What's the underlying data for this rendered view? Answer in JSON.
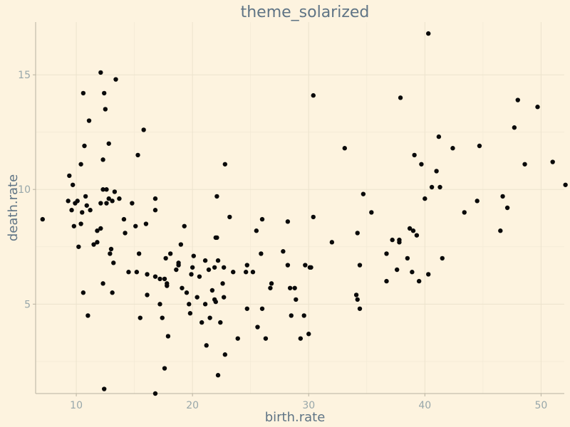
{
  "chart_data": {
    "type": "scatter",
    "title": "theme_solarized",
    "xlabel": "birth.rate",
    "ylabel": "death.rate",
    "xlim": [
      6.5,
      52
    ],
    "ylim": [
      1.1,
      17.3
    ],
    "xticks": [
      10,
      20,
      30,
      40,
      50
    ],
    "yticks": [
      5,
      10,
      15
    ],
    "grid": true,
    "legend": "none",
    "colors": {
      "background": "#fdf3df",
      "points": "#0a0a0a",
      "text": "#5f7485",
      "tick_text": "#98a7aa"
    },
    "points": [
      [
        7.1,
        8.7
      ],
      [
        9.3,
        9.5
      ],
      [
        9.4,
        10.6
      ],
      [
        9.6,
        9.1
      ],
      [
        9.7,
        10.2
      ],
      [
        9.8,
        8.4
      ],
      [
        9.9,
        9.4
      ],
      [
        10.1,
        9.5
      ],
      [
        10.2,
        7.5
      ],
      [
        10.4,
        8.5
      ],
      [
        10.5,
        9.0
      ],
      [
        10.4,
        11.1
      ],
      [
        10.6,
        14.2
      ],
      [
        10.6,
        5.5
      ],
      [
        10.7,
        11.9
      ],
      [
        10.8,
        9.7
      ],
      [
        10.9,
        9.3
      ],
      [
        11.1,
        13.0
      ],
      [
        11.0,
        4.5
      ],
      [
        11.2,
        9.1
      ],
      [
        11.5,
        7.6
      ],
      [
        11.8,
        7.7
      ],
      [
        11.8,
        8.2
      ],
      [
        12.1,
        9.4
      ],
      [
        12.1,
        8.3
      ],
      [
        12.1,
        15.1
      ],
      [
        12.3,
        10.0
      ],
      [
        12.3,
        11.3
      ],
      [
        12.3,
        5.9
      ],
      [
        12.4,
        14.2
      ],
      [
        12.5,
        13.5
      ],
      [
        12.6,
        10.0
      ],
      [
        12.6,
        9.4
      ],
      [
        12.8,
        12.0
      ],
      [
        12.8,
        9.6
      ],
      [
        12.9,
        7.2
      ],
      [
        13.0,
        7.4
      ],
      [
        13.1,
        9.5
      ],
      [
        13.1,
        5.5
      ],
      [
        13.2,
        6.8
      ],
      [
        13.3,
        9.9
      ],
      [
        13.4,
        14.8
      ],
      [
        13.7,
        9.6
      ],
      [
        12.4,
        1.3
      ],
      [
        14.1,
        8.7
      ],
      [
        14.2,
        8.1
      ],
      [
        14.5,
        6.4
      ],
      [
        14.8,
        9.4
      ],
      [
        15.1,
        8.4
      ],
      [
        15.2,
        6.4
      ],
      [
        15.3,
        11.5
      ],
      [
        15.4,
        7.2
      ],
      [
        15.5,
        4.4
      ],
      [
        15.8,
        12.6
      ],
      [
        16.0,
        8.5
      ],
      [
        16.1,
        6.3
      ],
      [
        16.1,
        5.4
      ],
      [
        16.8,
        6.2
      ],
      [
        16.8,
        9.6
      ],
      [
        16.8,
        9.1
      ],
      [
        16.8,
        1.1
      ],
      [
        17.2,
        6.1
      ],
      [
        17.2,
        5.0
      ],
      [
        17.4,
        4.4
      ],
      [
        17.6,
        6.1
      ],
      [
        17.6,
        2.2
      ],
      [
        17.7,
        7.0
      ],
      [
        17.8,
        5.9
      ],
      [
        17.8,
        5.8
      ],
      [
        17.9,
        3.6
      ],
      [
        18.1,
        7.2
      ],
      [
        18.6,
        6.5
      ],
      [
        18.8,
        6.8
      ],
      [
        18.8,
        6.7
      ],
      [
        19.0,
        7.6
      ],
      [
        19.1,
        5.7
      ],
      [
        19.3,
        8.4
      ],
      [
        19.5,
        5.5
      ],
      [
        19.7,
        5.0
      ],
      [
        19.8,
        4.6
      ],
      [
        19.9,
        6.3
      ],
      [
        20.0,
        6.6
      ],
      [
        20.1,
        7.1
      ],
      [
        20.4,
        5.3
      ],
      [
        20.6,
        6.2
      ],
      [
        20.8,
        4.2
      ],
      [
        21.1,
        6.9
      ],
      [
        21.2,
        3.2
      ],
      [
        21.1,
        5.0
      ],
      [
        21.4,
        6.5
      ],
      [
        21.5,
        4.4
      ],
      [
        21.7,
        5.6
      ],
      [
        21.9,
        5.2
      ],
      [
        21.9,
        6.6
      ],
      [
        22.0,
        7.9
      ],
      [
        22.0,
        5.1
      ],
      [
        22.1,
        7.9
      ],
      [
        22.1,
        9.7
      ],
      [
        22.2,
        6.9
      ],
      [
        22.2,
        1.9
      ],
      [
        22.4,
        4.2
      ],
      [
        22.6,
        5.9
      ],
      [
        22.7,
        6.6
      ],
      [
        22.7,
        5.3
      ],
      [
        22.8,
        2.8
      ],
      [
        22.8,
        11.1
      ],
      [
        23.2,
        8.8
      ],
      [
        23.5,
        6.4
      ],
      [
        23.9,
        3.5
      ],
      [
        24.6,
        6.4
      ],
      [
        24.7,
        4.8
      ],
      [
        24.7,
        6.7
      ],
      [
        25.2,
        6.4
      ],
      [
        25.5,
        8.2
      ],
      [
        25.6,
        4.0
      ],
      [
        25.9,
        7.2
      ],
      [
        26.0,
        4.8
      ],
      [
        26.0,
        8.7
      ],
      [
        26.3,
        3.5
      ],
      [
        26.7,
        5.7
      ],
      [
        26.8,
        5.9
      ],
      [
        27.8,
        7.3
      ],
      [
        28.2,
        6.7
      ],
      [
        28.2,
        8.6
      ],
      [
        28.4,
        5.7
      ],
      [
        28.5,
        4.5
      ],
      [
        28.8,
        5.7
      ],
      [
        28.9,
        5.2
      ],
      [
        29.3,
        3.5
      ],
      [
        29.6,
        4.5
      ],
      [
        29.7,
        6.7
      ],
      [
        30.0,
        3.7
      ],
      [
        30.1,
        6.6
      ],
      [
        30.2,
        6.6
      ],
      [
        30.4,
        8.8
      ],
      [
        30.4,
        14.1
      ],
      [
        32.0,
        7.7
      ],
      [
        33.1,
        11.8
      ],
      [
        34.1,
        5.4
      ],
      [
        34.2,
        5.2
      ],
      [
        34.2,
        8.1
      ],
      [
        34.4,
        6.7
      ],
      [
        34.4,
        4.8
      ],
      [
        34.7,
        9.8
      ],
      [
        35.4,
        9.0
      ],
      [
        36.7,
        7.2
      ],
      [
        36.7,
        6.0
      ],
      [
        37.2,
        7.8
      ],
      [
        37.6,
        6.5
      ],
      [
        37.8,
        7.8
      ],
      [
        37.8,
        7.7
      ],
      [
        37.9,
        14.0
      ],
      [
        38.5,
        7.0
      ],
      [
        38.7,
        8.3
      ],
      [
        38.9,
        6.4
      ],
      [
        39.0,
        8.2
      ],
      [
        39.1,
        11.5
      ],
      [
        39.3,
        8.0
      ],
      [
        39.5,
        6.0
      ],
      [
        39.7,
        11.1
      ],
      [
        40.0,
        9.6
      ],
      [
        40.3,
        6.3
      ],
      [
        40.3,
        16.8
      ],
      [
        40.6,
        10.1
      ],
      [
        41.0,
        10.8
      ],
      [
        41.2,
        12.3
      ],
      [
        41.3,
        10.1
      ],
      [
        41.5,
        7.0
      ],
      [
        42.4,
        11.8
      ],
      [
        43.4,
        9.0
      ],
      [
        44.5,
        9.5
      ],
      [
        44.7,
        11.9
      ],
      [
        46.5,
        8.2
      ],
      [
        46.7,
        9.7
      ],
      [
        47.1,
        9.2
      ],
      [
        47.7,
        12.7
      ],
      [
        48.0,
        13.9
      ],
      [
        48.6,
        11.1
      ],
      [
        49.7,
        13.6
      ],
      [
        51.0,
        11.2
      ],
      [
        52.1,
        10.2
      ]
    ]
  }
}
